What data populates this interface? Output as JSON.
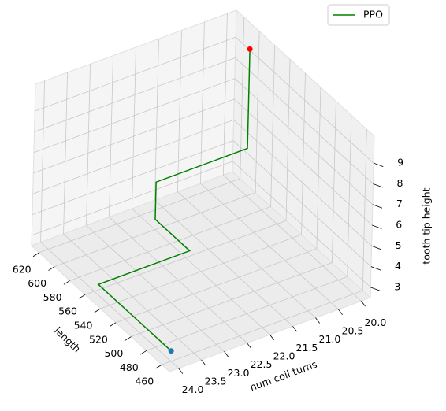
{
  "chart_data": {
    "type": "line3d",
    "xlabel": "length",
    "ylabel": "num coil turns",
    "zlabel": "tooth tip height",
    "series": [
      {
        "name": "PPO",
        "color": "green",
        "x": [
          460,
          555,
          555,
          600,
          600,
          600,
          600
        ],
        "y": [
          24.0,
          24.0,
          22.0,
          22.0,
          22.0,
          20.0,
          20.0
        ],
        "z": [
          3,
          3,
          3,
          3,
          4.8,
          4.8,
          9.6
        ]
      }
    ],
    "start_color": "#1f77b4",
    "end_color": "red",
    "xlim": [
      450,
      630
    ],
    "ylim": [
      19.8,
      24.2
    ],
    "zlim": [
      2.5,
      10.3
    ],
    "xticks": [
      460,
      480,
      500,
      520,
      540,
      560,
      580,
      600,
      620
    ],
    "yticks": [
      {
        "value": 20,
        "label": "20.0"
      },
      {
        "value": 20.5,
        "label": "20.5"
      },
      {
        "value": 21,
        "label": "21.0"
      },
      {
        "value": 21.5,
        "label": "21.5"
      },
      {
        "value": 22,
        "label": "22.0"
      },
      {
        "value": 22.5,
        "label": "22.5"
      },
      {
        "value": 23,
        "label": "23.0"
      },
      {
        "value": 23.5,
        "label": "23.5"
      },
      {
        "value": 24,
        "label": "24.0"
      }
    ],
    "zticks": [
      3,
      4,
      5,
      6,
      7,
      8,
      9
    ],
    "grid": true,
    "legend": "upper right"
  }
}
